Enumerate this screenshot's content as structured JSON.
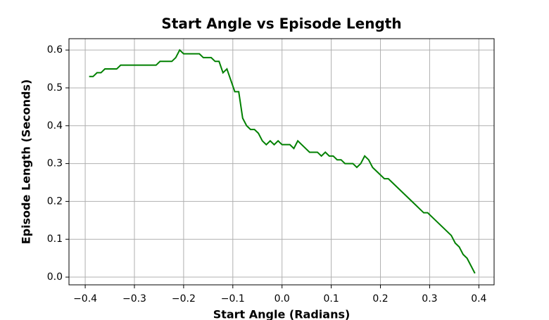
{
  "chart_data": {
    "type": "line",
    "title": "Start Angle vs Episode Length",
    "x_label": "Start Angle (Radians)",
    "y_label": "Episode Length (Seconds)",
    "x": [
      -0.392,
      -0.384,
      -0.376,
      -0.368,
      -0.36,
      -0.352,
      -0.344,
      -0.336,
      -0.328,
      -0.32,
      -0.312,
      -0.304,
      -0.296,
      -0.288,
      -0.28,
      -0.272,
      -0.264,
      -0.256,
      -0.248,
      -0.24,
      -0.232,
      -0.224,
      -0.216,
      -0.208,
      -0.2,
      -0.192,
      -0.184,
      -0.176,
      -0.168,
      -0.16,
      -0.152,
      -0.144,
      -0.136,
      -0.128,
      -0.12,
      -0.112,
      -0.104,
      -0.096,
      -0.088,
      -0.08,
      -0.072,
      -0.064,
      -0.056,
      -0.048,
      -0.04,
      -0.032,
      -0.024,
      -0.016,
      -0.008,
      0,
      0.008,
      0.016,
      0.024,
      0.032,
      0.04,
      0.048,
      0.056,
      0.064,
      0.072,
      0.08,
      0.088,
      0.096,
      0.104,
      0.112,
      0.12,
      0.128,
      0.136,
      0.144,
      0.152,
      0.16,
      0.168,
      0.176,
      0.184,
      0.192,
      0.2,
      0.208,
      0.216,
      0.224,
      0.232,
      0.24,
      0.248,
      0.256,
      0.264,
      0.272,
      0.28,
      0.288,
      0.296,
      0.304,
      0.312,
      0.32,
      0.328,
      0.336,
      0.344,
      0.352,
      0.36,
      0.368,
      0.376,
      0.384,
      0.392
    ],
    "series": [
      {
        "color": "#008000",
        "values": [
          0.53,
          0.53,
          0.54,
          0.54,
          0.55,
          0.55,
          0.55,
          0.55,
          0.56,
          0.56,
          0.56,
          0.56,
          0.56,
          0.56,
          0.56,
          0.56,
          0.56,
          0.56,
          0.57,
          0.57,
          0.57,
          0.57,
          0.58,
          0.6,
          0.59,
          0.59,
          0.59,
          0.59,
          0.59,
          0.58,
          0.58,
          0.58,
          0.57,
          0.57,
          0.54,
          0.55,
          0.52,
          0.49,
          0.49,
          0.42,
          0.4,
          0.39,
          0.39,
          0.38,
          0.36,
          0.35,
          0.36,
          0.35,
          0.36,
          0.35,
          0.35,
          0.35,
          0.34,
          0.36,
          0.35,
          0.34,
          0.33,
          0.33,
          0.33,
          0.32,
          0.33,
          0.32,
          0.32,
          0.31,
          0.31,
          0.3,
          0.3,
          0.3,
          0.29,
          0.3,
          0.32,
          0.31,
          0.29,
          0.28,
          0.27,
          0.26,
          0.26,
          0.25,
          0.24,
          0.23,
          0.22,
          0.21,
          0.2,
          0.19,
          0.18,
          0.17,
          0.17,
          0.16,
          0.15,
          0.14,
          0.13,
          0.12,
          0.11,
          0.09,
          0.08,
          0.06,
          0.05,
          0.03,
          0.01
        ]
      }
    ],
    "xlim": [
      -0.433,
      0.431
    ],
    "ylim": [
      -0.0204,
      0.63
    ],
    "xticks": [
      {
        "value": -0.4,
        "label": "−0.4"
      },
      {
        "value": -0.3,
        "label": "−0.3"
      },
      {
        "value": -0.2,
        "label": "−0.2"
      },
      {
        "value": -0.1,
        "label": "−0.1"
      },
      {
        "value": 0,
        "label": "0.0"
      },
      0.1,
      0.2,
      0.3,
      0.4
    ],
    "yticks": [
      {
        "value": 0,
        "label": "0.0"
      },
      0.1,
      0.2,
      0.3,
      0.4,
      0.5,
      0.6
    ],
    "grid": true
  }
}
